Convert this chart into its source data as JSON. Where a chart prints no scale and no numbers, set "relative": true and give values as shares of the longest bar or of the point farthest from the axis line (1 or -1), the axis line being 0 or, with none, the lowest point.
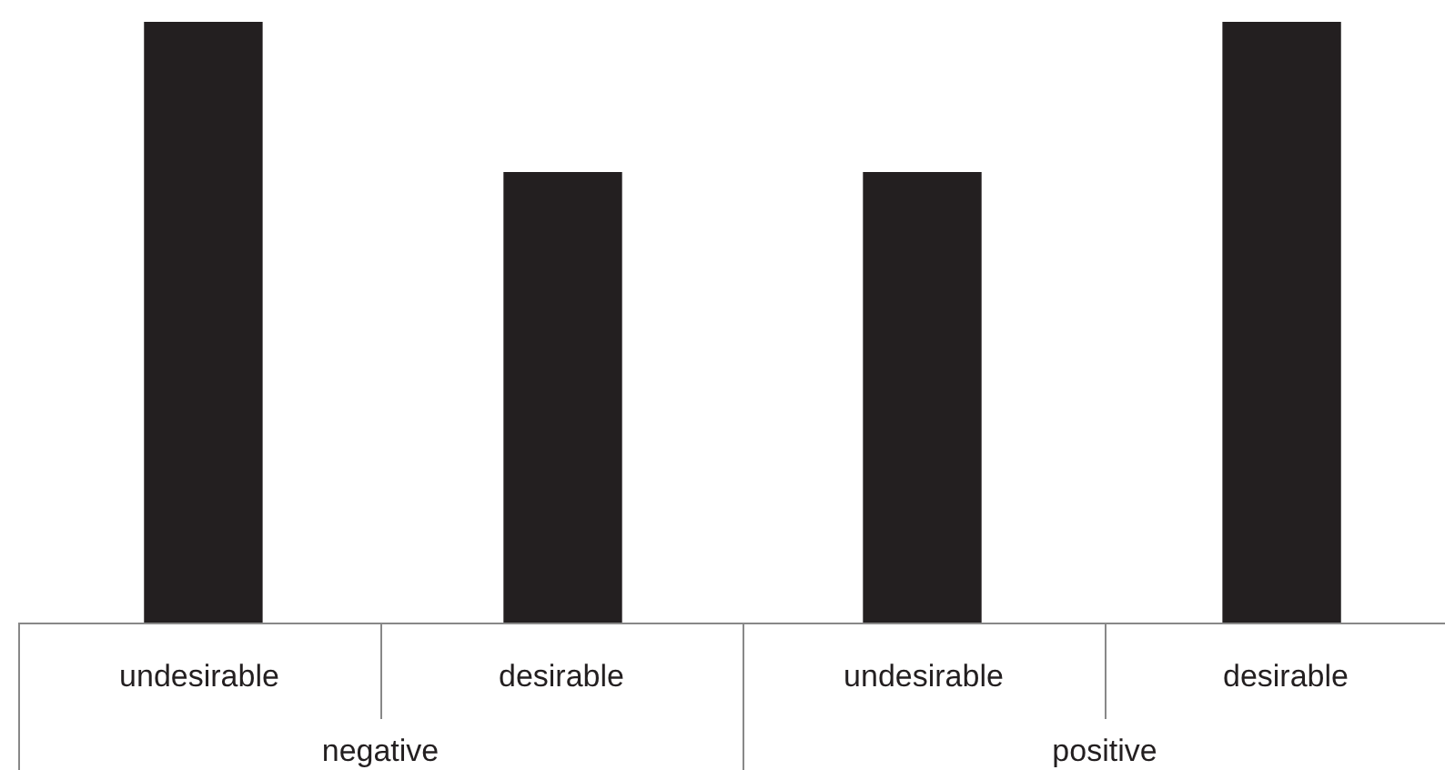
{
  "chart_data": {
    "type": "bar",
    "relative": true,
    "categories": [
      "undesirable",
      "desirable",
      "undesirable",
      "desirable"
    ],
    "values": [
      1,
      0.75,
      0.75,
      1
    ],
    "color": "#231f20",
    "annotations": [
      "negative",
      "positive"
    ]
  }
}
